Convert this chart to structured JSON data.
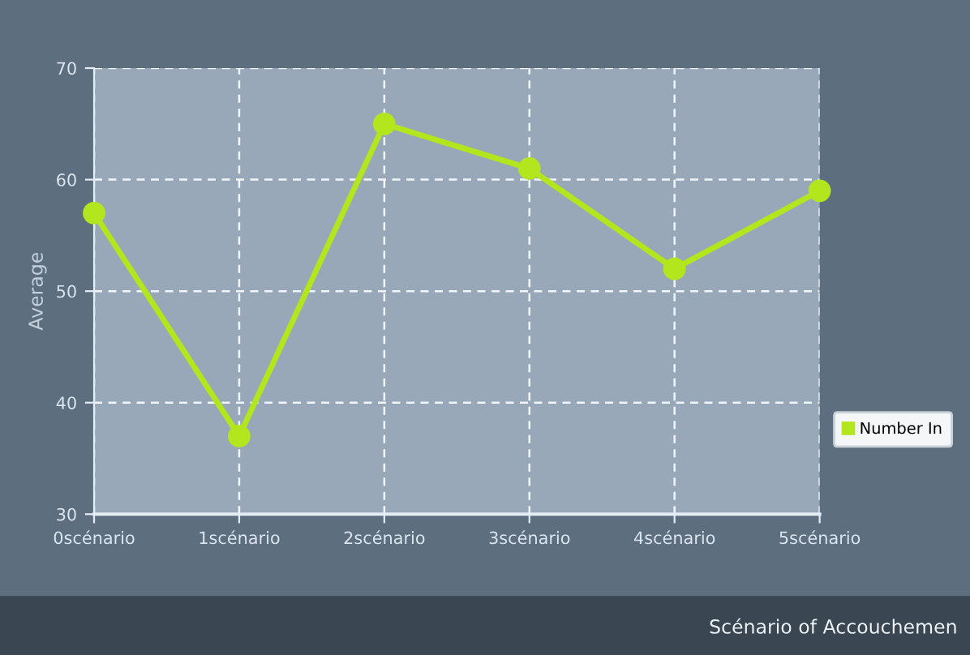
{
  "chart_data": {
    "type": "line",
    "categories": [
      "0scénario",
      "1scénario",
      "2scénario",
      "3scénario",
      "4scénario",
      "5scénario"
    ],
    "series": [
      {
        "name": "Number In",
        "color": "#b4e61e",
        "values": [
          57,
          37,
          65,
          61,
          52,
          59
        ]
      }
    ],
    "xlabel": "Scénario of Accouchemen",
    "ylabel": "Average",
    "ylim": [
      30,
      70
    ],
    "yticks": [
      30,
      40,
      50,
      60,
      70
    ],
    "grid": true,
    "legend": "right",
    "marker": "circle",
    "line_style": "solid"
  }
}
